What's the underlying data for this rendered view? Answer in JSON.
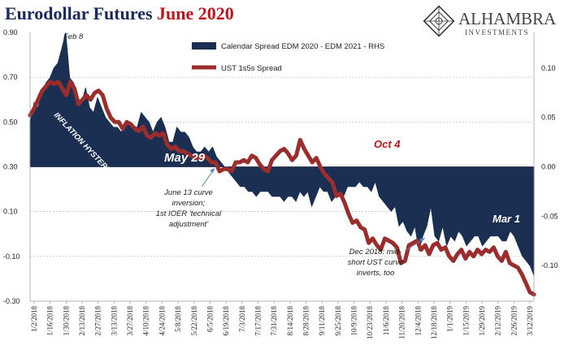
{
  "title": {
    "part1": "Eurodollar Futures ",
    "part2": "June 2020"
  },
  "logo": {
    "name": "ALHAMBRA",
    "sub": "INVESTMENTS"
  },
  "colors": {
    "area": "#1a2f52",
    "line": "#9b2d2d",
    "red_text": "#c0141c",
    "navy": "#1a2a5e"
  },
  "chart_data": {
    "type": "area+line",
    "x_ticks": [
      "1/2/2018",
      "1/16/2018",
      "1/30/2018",
      "2/13/2018",
      "2/27/2018",
      "3/13/2018",
      "3/27/2018",
      "4/10/2018",
      "4/24/2018",
      "5/8/2018",
      "5/22/2018",
      "6/5/2018",
      "6/19/2018",
      "7/3/2018",
      "7/17/2018",
      "7/31/2018",
      "8/14/2018",
      "8/28/2018",
      "9/11/2018",
      "9/25/2018",
      "10/9/2018",
      "10/23/2018",
      "11/6/2018",
      "11/20/2018",
      "12/4/2018",
      "12/18/2018",
      "1/1/2019",
      "1/15/2019",
      "1/29/2019",
      "2/12/2019",
      "2/26/2019",
      "3/12/2019"
    ],
    "left_axis": {
      "ticks": [
        "0.90",
        "0.70",
        "0.50",
        "0.30",
        "0.10",
        "-0.10",
        "-0.30"
      ],
      "ylim": [
        -0.3,
        0.9
      ]
    },
    "right_axis": {
      "ticks": [
        "0.10",
        "0.05",
        "0.00",
        "-0.05",
        "-0.10"
      ],
      "ylim": [
        -0.136,
        0.136
      ]
    },
    "series": [
      {
        "name": "Calendar Spread EDM 2020 - EDM 2021 - RHS",
        "axis": "right",
        "kind": "area",
        "values": [
          0.045,
          0.065,
          0.06,
          0.075,
          0.085,
          0.09,
          0.1,
          0.105,
          0.12,
          0.136,
          0.09,
          0.085,
          0.07,
          0.065,
          0.08,
          0.06,
          0.055,
          0.07,
          0.06,
          0.05,
          0.045,
          0.04,
          0.04,
          0.035,
          0.045,
          0.045,
          0.04,
          0.04,
          0.055,
          0.05,
          0.045,
          0.035,
          0.045,
          0.05,
          0.04,
          0.025,
          0.025,
          0.04,
          0.035,
          0.035,
          0.03,
          0.02,
          0.015,
          0.015,
          0.02,
          0.015,
          0.02,
          0.01,
          0.005,
          0.0,
          -0.005,
          -0.01,
          -0.015,
          -0.02,
          -0.02,
          -0.025,
          -0.025,
          -0.03,
          -0.025,
          -0.025,
          -0.025,
          -0.03,
          -0.03,
          -0.03,
          -0.035,
          -0.03,
          -0.03,
          -0.035,
          -0.025,
          -0.03,
          -0.025,
          -0.04,
          -0.03,
          -0.02,
          -0.025,
          -0.025,
          -0.035,
          -0.03,
          -0.025,
          -0.03,
          -0.02,
          -0.02,
          -0.02,
          -0.015,
          -0.02,
          -0.02,
          -0.025,
          -0.015,
          -0.03,
          -0.035,
          -0.04,
          -0.045,
          -0.04,
          -0.06,
          -0.055,
          -0.065,
          -0.07,
          -0.06,
          -0.085,
          -0.07,
          -0.06,
          -0.04,
          -0.07,
          -0.075,
          -0.06,
          -0.08,
          -0.07,
          -0.075,
          -0.065,
          -0.07,
          -0.08,
          -0.075,
          -0.07,
          -0.07,
          -0.08,
          -0.075,
          -0.07,
          -0.07,
          -0.07,
          -0.075,
          -0.075,
          -0.065,
          -0.07,
          -0.08,
          -0.09,
          -0.095,
          -0.1,
          -0.11
        ]
      },
      {
        "name": "UST 1s5s Spread",
        "axis": "left",
        "kind": "line",
        "values": [
          0.53,
          0.56,
          0.6,
          0.64,
          0.66,
          0.68,
          0.67,
          0.68,
          0.65,
          0.62,
          0.68,
          0.65,
          0.58,
          0.6,
          0.62,
          0.6,
          0.63,
          0.64,
          0.62,
          0.56,
          0.52,
          0.5,
          0.5,
          0.47,
          0.5,
          0.49,
          0.47,
          0.46,
          0.48,
          0.44,
          0.43,
          0.45,
          0.44,
          0.45,
          0.4,
          0.38,
          0.39,
          0.37,
          0.37,
          0.36,
          0.35,
          0.34,
          0.34,
          0.35,
          0.34,
          0.32,
          0.32,
          0.28,
          0.29,
          0.29,
          0.28,
          0.32,
          0.32,
          0.33,
          0.32,
          0.35,
          0.34,
          0.31,
          0.29,
          0.28,
          0.33,
          0.35,
          0.37,
          0.38,
          0.36,
          0.33,
          0.35,
          0.42,
          0.38,
          0.35,
          0.32,
          0.34,
          0.3,
          0.27,
          0.25,
          0.23,
          0.17,
          0.18,
          0.14,
          0.09,
          0.05,
          0.06,
          0.03,
          0.02,
          -0.04,
          -0.02,
          -0.05,
          -0.07,
          -0.02,
          -0.03,
          -0.04,
          -0.06,
          -0.13,
          -0.12,
          -0.05,
          -0.04,
          -0.03,
          -0.07,
          -0.05,
          -0.09,
          -0.05,
          -0.04,
          -0.07,
          -0.06,
          -0.1,
          -0.12,
          -0.09,
          -0.07,
          -0.11,
          -0.08,
          -0.1,
          -0.07,
          -0.09,
          -0.07,
          -0.08,
          -0.06,
          -0.1,
          -0.12,
          -0.08,
          -0.13,
          -0.14,
          -0.15,
          -0.18,
          -0.22,
          -0.26,
          -0.27
        ]
      }
    ],
    "annotations": [
      {
        "text": "Feb 8",
        "style": "italic"
      },
      {
        "text": "INFLATION HYSTERIA",
        "style": "white-rotated"
      },
      {
        "text": "May 29",
        "style": "bold-white"
      },
      {
        "text": "Oct 4",
        "style": "bold-red"
      },
      {
        "text": "Mar 1",
        "style": "bold-white"
      },
      {
        "lines": [
          "June 13 curve",
          "inversion;",
          "1st IOER 'technical",
          "adjustment'"
        ]
      },
      {
        "lines": [
          "Dec 2018: mid-",
          "short UST curve",
          "inverts, too"
        ]
      }
    ]
  }
}
